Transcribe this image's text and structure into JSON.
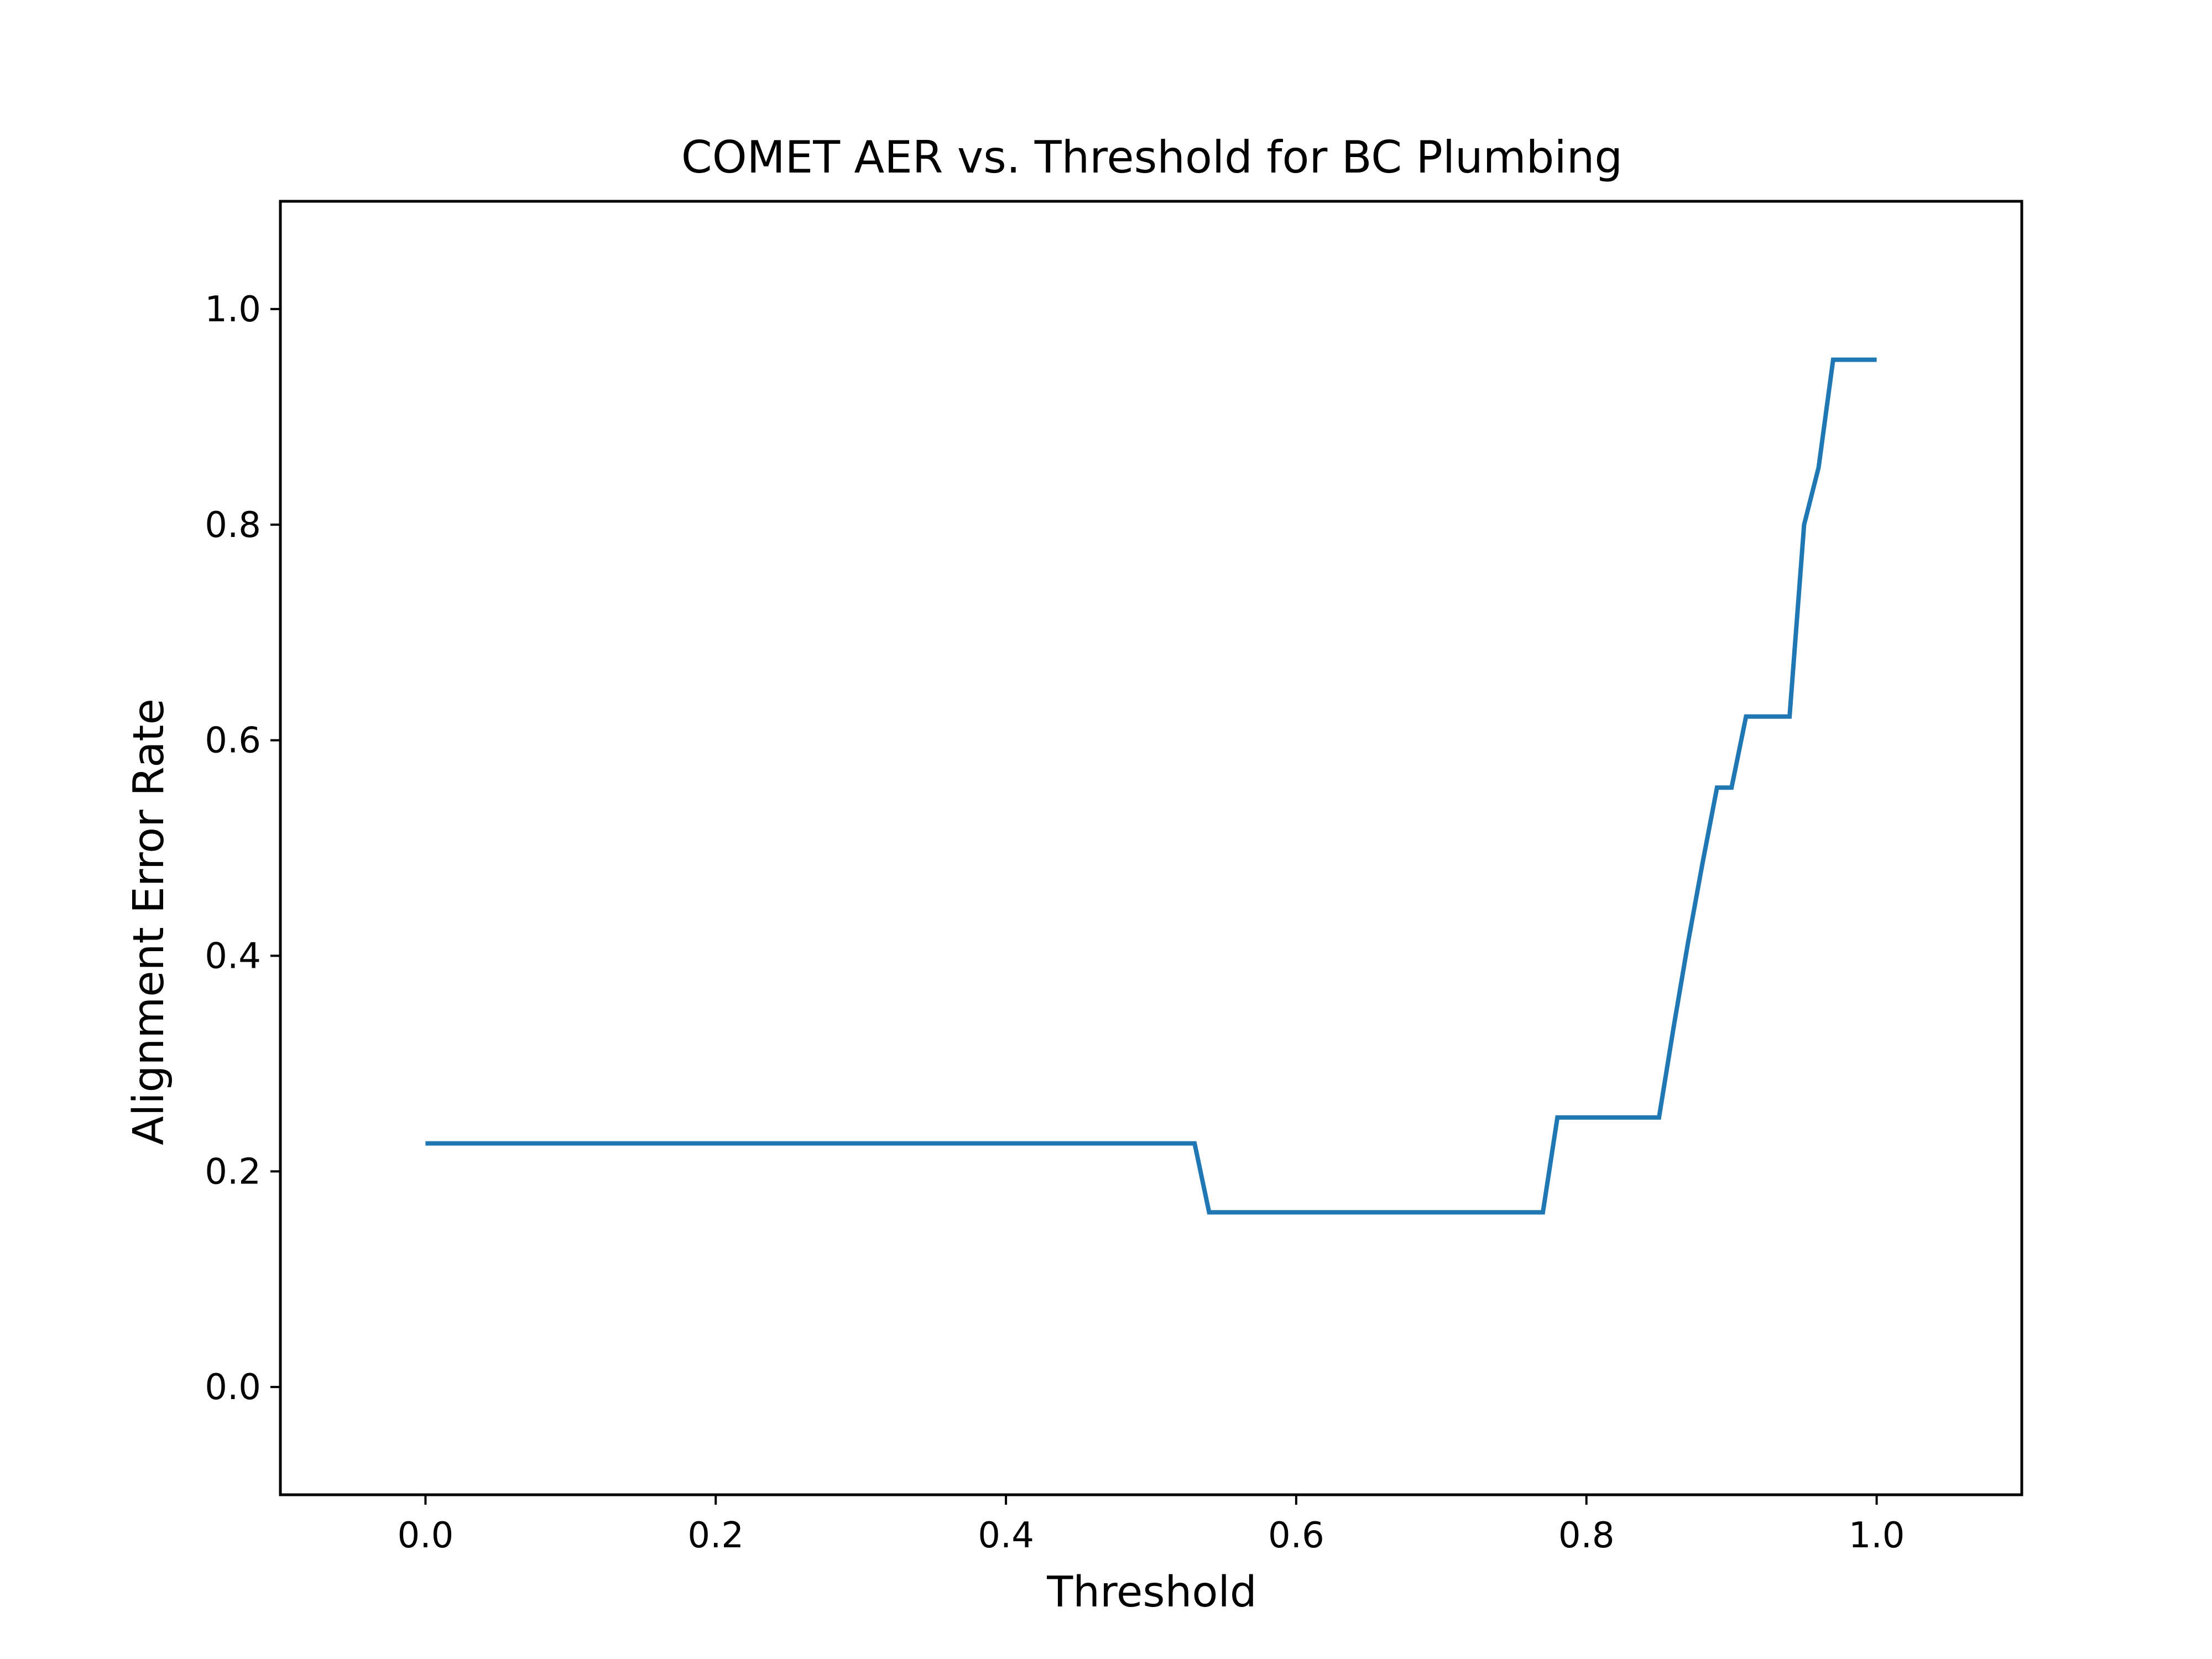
{
  "colors": {
    "background": "#ffffff",
    "axes": "#000000",
    "series_line": "#1f77b4"
  },
  "chart_data": {
    "type": "line",
    "title": "COMET AER vs. Threshold for BC Plumbing",
    "xlabel": "Threshold",
    "ylabel": "Alignment Error Rate",
    "xlim": [
      -0.1,
      1.1
    ],
    "ylim": [
      -0.1,
      1.1
    ],
    "xticks": [
      0.0,
      0.2,
      0.4,
      0.6,
      0.8,
      1.0
    ],
    "xtick_labels": [
      "0.0",
      "0.2",
      "0.4",
      "0.6",
      "0.8",
      "1.0"
    ],
    "yticks": [
      0.0,
      0.2,
      0.4,
      0.6,
      0.8,
      1.0
    ],
    "ytick_labels": [
      "0.0",
      "0.2",
      "0.4",
      "0.6",
      "0.8",
      "1.0"
    ],
    "grid": false,
    "legend": "none",
    "series": [
      {
        "color": "#1f77b4",
        "x": [
          0.0,
          0.53,
          0.54,
          0.77,
          0.78,
          0.85,
          0.86,
          0.87,
          0.88,
          0.89,
          0.9,
          0.91,
          0.94,
          0.95,
          0.96,
          0.97,
          1.0
        ],
        "y": [
          0.226,
          0.226,
          0.162,
          0.162,
          0.25,
          0.25,
          0.333,
          0.412,
          0.486,
          0.556,
          0.556,
          0.622,
          0.622,
          0.8,
          0.853,
          0.953,
          0.953
        ]
      }
    ]
  }
}
